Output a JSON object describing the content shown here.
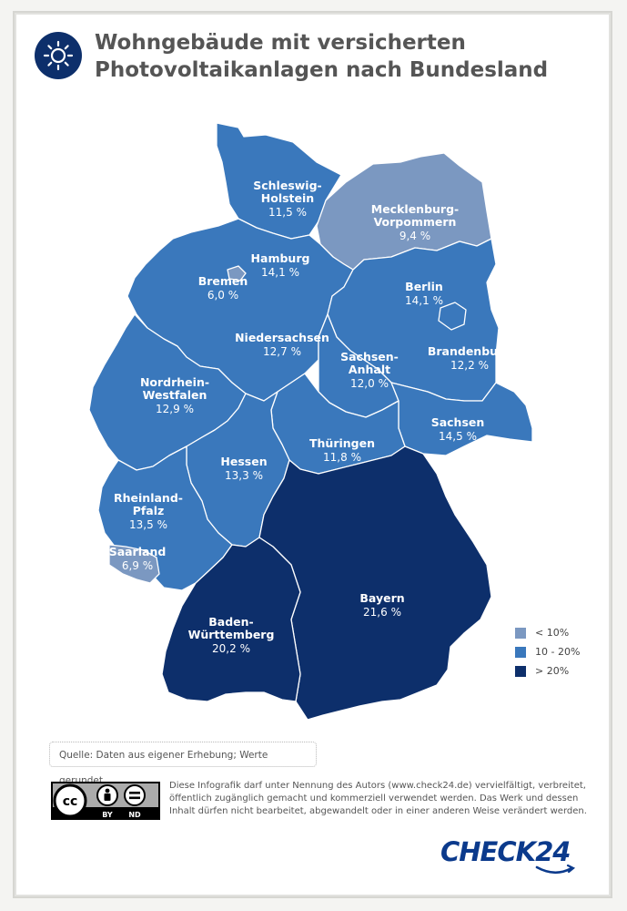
{
  "title_line1": "Wohngebäude mit versicherten",
  "title_line2": "Photovoltaikanlagen nach Bundesland",
  "icon": "sun-icon",
  "colors": {
    "low": "#7b98c1",
    "mid": "#3a78bc",
    "high": "#0d2f6b",
    "border": "#ffffff"
  },
  "regions": [
    {
      "name": "Schleswig-Holstein",
      "label_lines": [
        "Schleswig-",
        "Holstein"
      ],
      "value": "11,5 %",
      "class": "mid"
    },
    {
      "name": "Mecklenburg-Vorpommern",
      "label_lines": [
        "Mecklenburg-",
        "Vorpommern"
      ],
      "value": "9,4 %",
      "class": "low"
    },
    {
      "name": "Hamburg",
      "label_lines": [
        "Hamburg"
      ],
      "value": "14,1 %",
      "class": "mid"
    },
    {
      "name": "Bremen",
      "label_lines": [
        "Bremen"
      ],
      "value": "6,0 %",
      "class": "low"
    },
    {
      "name": "Berlin",
      "label_lines": [
        "Berlin"
      ],
      "value": "14,1 %",
      "class": "mid"
    },
    {
      "name": "Niedersachsen",
      "label_lines": [
        "Niedersachsen"
      ],
      "value": "12,7 %",
      "class": "mid"
    },
    {
      "name": "Sachsen-Anhalt",
      "label_lines": [
        "Sachsen-",
        "Anhalt"
      ],
      "value": "12,0 %",
      "class": "mid"
    },
    {
      "name": "Brandenburg",
      "label_lines": [
        "Brandenburg"
      ],
      "value": "12,2 %",
      "class": "mid"
    },
    {
      "name": "Nordrhein-Westfalen",
      "label_lines": [
        "Nordrhein-",
        "Westfalen"
      ],
      "value": "12,9 %",
      "class": "mid"
    },
    {
      "name": "Sachsen",
      "label_lines": [
        "Sachsen"
      ],
      "value": "14,5 %",
      "class": "mid"
    },
    {
      "name": "Thüringen",
      "label_lines": [
        "Thüringen"
      ],
      "value": "11,8 %",
      "class": "mid"
    },
    {
      "name": "Hessen",
      "label_lines": [
        "Hessen"
      ],
      "value": "13,3 %",
      "class": "mid"
    },
    {
      "name": "Rheinland-Pfalz",
      "label_lines": [
        "Rheinland-",
        "Pfalz"
      ],
      "value": "13,5 %",
      "class": "mid"
    },
    {
      "name": "Saarland",
      "label_lines": [
        "Saarland"
      ],
      "value": "6,9 %",
      "class": "low"
    },
    {
      "name": "Bayern",
      "label_lines": [
        "Bayern"
      ],
      "value": "21,6 %",
      "class": "high"
    },
    {
      "name": "Baden-Württemberg",
      "label_lines": [
        "Baden-",
        "Württemberg"
      ],
      "value": "20,2 %",
      "class": "high"
    }
  ],
  "legend": [
    {
      "label": "< 10%",
      "class": "low"
    },
    {
      "label": "10 - 20%",
      "class": "mid"
    },
    {
      "label": "> 20%",
      "class": "high"
    }
  ],
  "source_note": "Quelle: Daten aus eigener Erhebung; Werte gerundet.",
  "license_badge": {
    "by": "BY",
    "nd": "ND",
    "cc": "cc"
  },
  "license_text": "Diese Infografik darf unter Nennung des Autors (www.check24.de) vervielfältigt, verbreitet, öffentlich zugänglich gemacht und kommerziell verwendet werden. Das Werk und dessen Inhalt dürfen nicht bearbeitet, abgewandelt oder in einer anderen Weise verändert werden.",
  "brand": "CHECK24"
}
